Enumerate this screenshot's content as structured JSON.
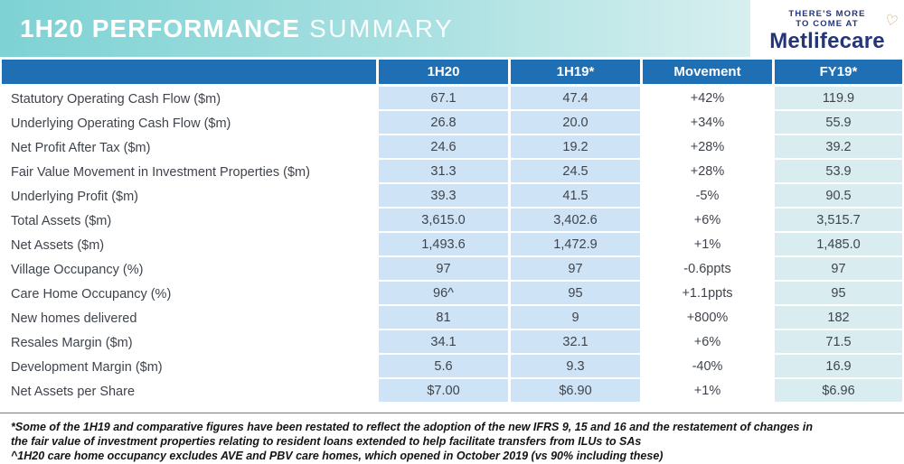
{
  "banner": {
    "title_bold": "1H20 PERFORMANCE",
    "title_light": "SUMMARY"
  },
  "logo": {
    "tagline_line1": "THERE'S MORE",
    "tagline_line2": "TO COME AT",
    "brand": "Metlifecare",
    "heart_icon": "♡"
  },
  "colors": {
    "banner_teal_left": "#7ED2D4",
    "banner_teal_right": "#D8EFEF",
    "header_blue": "#1F6FB5",
    "cell_light_blue": "#CEE3F5",
    "cell_light_teal": "#D9EDF0",
    "brand_navy": "#24357A",
    "heart_gold": "#C5A04E"
  },
  "table": {
    "columns": [
      "",
      "1H20",
      "1H19*",
      "Movement",
      "FY19*"
    ],
    "rows": [
      {
        "label": "Statutory Operating Cash Flow ($m)",
        "values": [
          "67.1",
          "47.4",
          "+42%",
          "119.9"
        ]
      },
      {
        "label": "Underlying Operating Cash Flow ($m)",
        "values": [
          "26.8",
          "20.0",
          "+34%",
          "55.9"
        ]
      },
      {
        "label": "Net Profit After Tax ($m)",
        "values": [
          "24.6",
          "19.2",
          "+28%",
          "39.2"
        ]
      },
      {
        "label": "Fair Value Movement in Investment Properties ($m)",
        "values": [
          "31.3",
          "24.5",
          "+28%",
          "53.9"
        ]
      },
      {
        "label": "Underlying Profit ($m)",
        "values": [
          "39.3",
          "41.5",
          "-5%",
          "90.5"
        ]
      },
      {
        "label": "Total Assets ($m)",
        "values": [
          "3,615.0",
          "3,402.6",
          "+6%",
          "3,515.7"
        ]
      },
      {
        "label": "Net Assets ($m)",
        "values": [
          "1,493.6",
          "1,472.9",
          "+1%",
          "1,485.0"
        ]
      },
      {
        "label": "Village Occupancy (%)",
        "values": [
          "97",
          "97",
          "-0.6ppts",
          "97"
        ]
      },
      {
        "label": "Care Home Occupancy (%)",
        "values": [
          "96^",
          "95",
          "+1.1ppts",
          "95"
        ]
      },
      {
        "label": "New homes delivered",
        "values": [
          "81",
          "9",
          "+800%",
          "182"
        ]
      },
      {
        "label": "Resales Margin ($m)",
        "values": [
          "34.1",
          "32.1",
          "+6%",
          "71.5"
        ]
      },
      {
        "label": "Development Margin ($m)",
        "values": [
          "5.6",
          "9.3",
          "-40%",
          "16.9"
        ]
      },
      {
        "label": "Net Assets per Share",
        "values": [
          "$7.00",
          "$6.90",
          "+1%",
          "$6.96"
        ]
      }
    ]
  },
  "footnote": {
    "lines": [
      "*Some of the 1H19 and comparative figures have been restated to reflect the adoption of the new IFRS 9, 15 and 16 and the restatement of changes in",
      "the fair value  of investment properties relating to resident loans extended to help facilitate transfers from ILUs to SAs",
      "^1H20 care home occupancy excludes AVE and PBV care homes, which opened in October 2019 (vs 90% including these)"
    ]
  }
}
